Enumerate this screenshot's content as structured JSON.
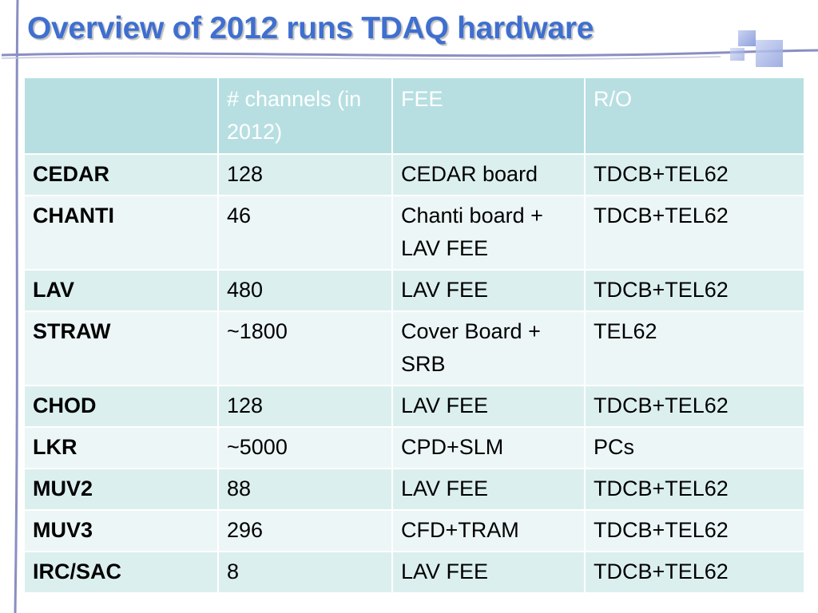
{
  "slide": {
    "title": "Overview of 2012 runs TDAQ hardware"
  },
  "table": {
    "headers": [
      "",
      "# channels (in 2012)",
      "FEE",
      "R/O"
    ],
    "rows": [
      {
        "detector": "CEDAR",
        "channels": "128",
        "fee": "CEDAR board",
        "ro": "TDCB+TEL62"
      },
      {
        "detector": "CHANTI",
        "channels": "46",
        "fee": "Chanti board + LAV FEE",
        "ro": "TDCB+TEL62"
      },
      {
        "detector": "LAV",
        "channels": "480",
        "fee": "LAV FEE",
        "ro": "TDCB+TEL62"
      },
      {
        "detector": "STRAW",
        "channels": "~1800",
        "fee": "Cover Board + SRB",
        "ro": "TEL62"
      },
      {
        "detector": "CHOD",
        "channels": "128",
        "fee": "LAV FEE",
        "ro": "TDCB+TEL62"
      },
      {
        "detector": "LKR",
        "channels": "~5000",
        "fee": "CPD+SLM",
        "ro": "PCs"
      },
      {
        "detector": "MUV2",
        "channels": "88",
        "fee": "LAV FEE",
        "ro": "TDCB+TEL62"
      },
      {
        "detector": "MUV3",
        "channels": "296",
        "fee": "CFD+TRAM",
        "ro": "TDCB+TEL62"
      },
      {
        "detector": "IRC/SAC",
        "channels": "8",
        "fee": "LAV FEE",
        "ro": "TDCB+TEL62"
      }
    ]
  },
  "colors": {
    "title": "#3f6fcf",
    "header_bg": "#b7dfe2",
    "row_odd": "#dcefef",
    "row_even": "#edf6f6",
    "decor_line": "#8a8ec2"
  }
}
